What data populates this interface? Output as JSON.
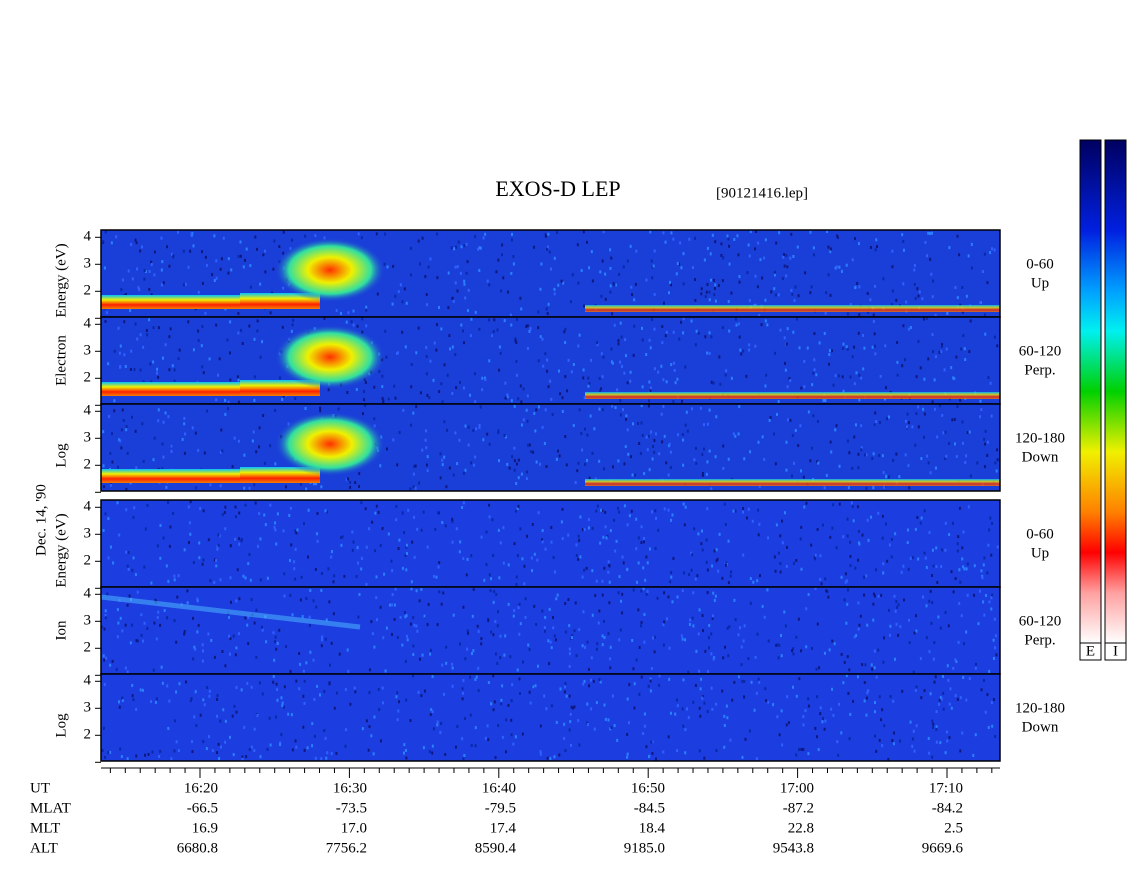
{
  "title": "EXOS-D LEP",
  "file": "[90121416.lep]",
  "date": "Dec. 14, '90",
  "electron": {
    "axis_label": [
      "Log",
      "Electron",
      "Energy (eV)"
    ],
    "panels": [
      {
        "ticks": [
          "4",
          "3",
          "2"
        ],
        "channel": [
          "0-60",
          "Up"
        ]
      },
      {
        "ticks": [
          "4",
          "3",
          "2"
        ],
        "channel": [
          "60-120",
          "Perp."
        ]
      },
      {
        "ticks": [
          "4",
          "3",
          "2"
        ],
        "channel": [
          "120-180",
          "Down"
        ]
      }
    ]
  },
  "ion": {
    "axis_label": [
      "Log",
      "Ion",
      "Energy (eV)"
    ],
    "panels": [
      {
        "ticks": [
          "4",
          "3",
          "2"
        ],
        "channel": [
          "0-60",
          "Up"
        ]
      },
      {
        "ticks": [
          "4",
          "3",
          "2"
        ],
        "channel": [
          "60-120",
          "Perp."
        ]
      },
      {
        "ticks": [
          "4",
          "3",
          "2"
        ],
        "channel": [
          "120-180",
          "Down"
        ]
      }
    ]
  },
  "orbit": {
    "rows": [
      {
        "name": "UT",
        "values": [
          "16:20",
          "16:30",
          "16:40",
          "16:50",
          "17:00",
          "17:10"
        ]
      },
      {
        "name": "MLAT",
        "values": [
          "-66.5",
          "-73.5",
          "-79.5",
          "-84.5",
          "-87.2",
          "-84.2"
        ]
      },
      {
        "name": "MLT",
        "values": [
          "16.9",
          "17.0",
          "17.4",
          "18.4",
          "22.8",
          "2.5"
        ]
      },
      {
        "name": "ALT",
        "values": [
          "6680.8",
          "7756.2",
          "8590.4",
          "9185.0",
          "9543.8",
          "9669.6"
        ]
      }
    ]
  },
  "colorbars": [
    "E",
    "I"
  ]
}
